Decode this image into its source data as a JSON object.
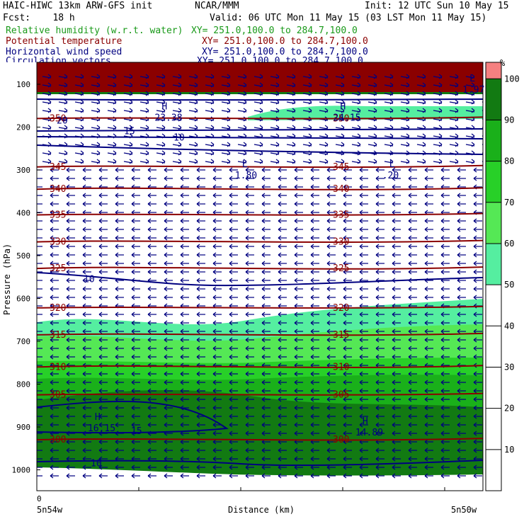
{
  "header": {
    "left1": "HAIC-HIWC 13km ARW-GFS init",
    "center1": "NCAR/MMM",
    "right1": "Init: 12 UTC Sun 10 May 15",
    "left2": "Fcst:    18 h",
    "right2": "Valid: 06 UTC Mon 11 May 15 (03 LST Mon 11 May 15)",
    "fields": [
      {
        "name": "Relative humidity (w.r.t. water)",
        "xy": "XY= 251.0,100.0 to 284.7,100.0",
        "color": "#1a9a1a"
      },
      {
        "name": "Potential temperature",
        "xy": "XY= 251.0,100.0 to 284.7,100.0",
        "color": "#8b0000"
      },
      {
        "name": "Horizontal wind speed",
        "xy": "XY= 251.0,100.0 to 284.7,100.0",
        "color": "#000080"
      },
      {
        "name": "Circulation vectors",
        "xy": "XY= 251.0,100.0 to 284.7,100.0",
        "color": "#000080"
      }
    ]
  },
  "chart_data": {
    "type": "cross-section",
    "ylabel": "Pressure (hPa)",
    "xlabel": "Distance (km)",
    "x_left_label": "5n54w",
    "x_right_label": "5n50w",
    "x_zero_label": "0",
    "yticks": [
      100,
      200,
      300,
      400,
      500,
      600,
      700,
      800,
      900,
      1000
    ],
    "ylim": [
      1000,
      75
    ],
    "colorbar": {
      "unit": "%",
      "ticks": [
        10,
        20,
        30,
        40,
        50,
        60,
        70,
        80,
        90,
        100
      ],
      "colors": [
        {
          "from": 0,
          "to": 50,
          "color": "#ffffff"
        },
        {
          "from": 50,
          "to": 60,
          "color": "#55eea0"
        },
        {
          "from": 60,
          "to": 70,
          "color": "#55e855"
        },
        {
          "from": 70,
          "to": 80,
          "color": "#28d028"
        },
        {
          "from": 80,
          "to": 90,
          "color": "#1ab01a"
        },
        {
          "from": 90,
          "to": 100,
          "color": "#127a12"
        },
        {
          "from": 100,
          "to": 104,
          "color": "#f58080"
        }
      ]
    },
    "theta_contours": [
      {
        "label": "350",
        "p": 180
      },
      {
        "label": "345",
        "p": 293
      },
      {
        "label": "340",
        "p": 345
      },
      {
        "label": "335",
        "p": 405
      },
      {
        "label": "330",
        "p": 468
      },
      {
        "label": "325",
        "p": 530
      },
      {
        "label": "320",
        "p": 622
      },
      {
        "label": "315",
        "p": 685
      },
      {
        "label": "310",
        "p": 760
      },
      {
        "label": "305",
        "p": 825
      },
      {
        "label": "300",
        "p": 930
      }
    ],
    "wind_labels": [
      {
        "label": "20",
        "p": 185
      },
      {
        "label": "15",
        "p": 210
      },
      {
        "label": "10",
        "p": 225
      },
      {
        "label": "10",
        "p": 555
      },
      {
        "label": "15",
        "p": 910
      },
      {
        "label": "10",
        "p": 985
      }
    ],
    "extrema": [
      {
        "type": "H",
        "value": "23.38",
        "x": 0.28,
        "p": 165
      },
      {
        "type": "H",
        "value": "24.15",
        "x": 0.68,
        "p": 165
      },
      {
        "type": "L",
        "value": "1.80",
        "x": 0.46,
        "p": 300
      },
      {
        "type": "L",
        "value": ".20",
        "x": 0.79,
        "p": 300
      },
      {
        "type": "H",
        "value": "16.15",
        "x": 0.13,
        "p": 890
      },
      {
        "type": "H",
        "value": "14.89",
        "x": 0.73,
        "p": 900
      },
      {
        "type": "L",
        "value": "1.97",
        "x": 0.97,
        "p": 100
      }
    ]
  }
}
